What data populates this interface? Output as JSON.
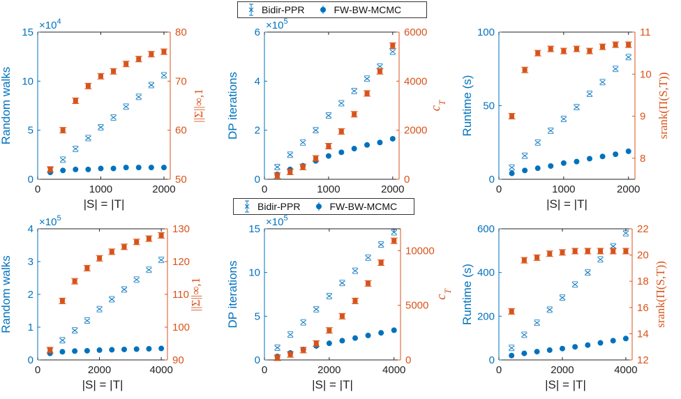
{
  "legend": {
    "bidir_label": "Bidir-PPR",
    "fw_label": "FW-BW-MCMC"
  },
  "colors": {
    "blue": "#0072BD",
    "orange": "#D95319",
    "axis": "#222222"
  },
  "chart_data": [
    {
      "type": "scatter",
      "xlabel": "|S| = |T|",
      "ylabel": "Random walks",
      "y2label": "||Σ||∞,1",
      "xlim": [
        0,
        2100
      ],
      "xticks": [
        0,
        1000,
        2000
      ],
      "ylim": [
        0,
        15
      ],
      "yticks": [
        0,
        5,
        10,
        15
      ],
      "yexp": "4",
      "y2lim": [
        50,
        80
      ],
      "y2ticks": [
        50,
        60,
        70,
        80
      ],
      "x": [
        200,
        400,
        600,
        800,
        1000,
        1200,
        1400,
        1600,
        1800,
        2000
      ],
      "series": [
        {
          "name": "Bidir-PPR",
          "axis": "left",
          "values": [
            1.0,
            2.0,
            3.1,
            4.2,
            5.3,
            6.3,
            7.4,
            8.4,
            9.6,
            10.6
          ]
        },
        {
          "name": "FW-BW-MCMC",
          "axis": "left",
          "values": [
            0.7,
            0.9,
            1.0,
            1.0,
            1.1,
            1.1,
            1.2,
            1.2,
            1.2,
            1.2
          ]
        },
        {
          "name": "||Σ||∞,1",
          "axis": "right",
          "values": [
            52,
            60,
            66,
            69,
            71,
            72,
            73.5,
            74.5,
            75.5,
            76
          ]
        }
      ]
    },
    {
      "type": "scatter",
      "xlabel": "|S| = |T|",
      "ylabel": "DP iterations",
      "y2label": "c_T",
      "xlim": [
        0,
        2100
      ],
      "xticks": [
        0,
        1000,
        2000
      ],
      "ylim": [
        0,
        6
      ],
      "yticks": [
        0,
        2,
        4,
        6
      ],
      "yexp": "5",
      "y2lim": [
        0,
        6000
      ],
      "y2ticks": [
        0,
        2000,
        4000,
        6000
      ],
      "x": [
        200,
        400,
        600,
        800,
        1000,
        1200,
        1400,
        1600,
        1800,
        2000
      ],
      "series": [
        {
          "name": "Bidir-PPR",
          "axis": "left",
          "values": [
            0.5,
            1.0,
            1.5,
            2.0,
            2.6,
            3.1,
            3.6,
            4.1,
            4.6,
            5.2
          ]
        },
        {
          "name": "FW-BW-MCMC",
          "axis": "left",
          "values": [
            0.2,
            0.4,
            0.55,
            0.75,
            0.95,
            1.1,
            1.25,
            1.4,
            1.5,
            1.65
          ]
        },
        {
          "name": "c_T",
          "axis": "right",
          "values": [
            150,
            300,
            500,
            850,
            1350,
            1950,
            2650,
            3500,
            4400,
            5450
          ]
        }
      ]
    },
    {
      "type": "scatter",
      "xlabel": "|S| = |T|",
      "ylabel": "Runtime (s)",
      "y2label": "srank(Π(S,T))",
      "xlim": [
        0,
        2100
      ],
      "xticks": [
        0,
        1000,
        2000
      ],
      "ylim": [
        0,
        100
      ],
      "yticks": [
        0,
        50,
        100
      ],
      "yexp": "",
      "y2lim": [
        7.5,
        11
      ],
      "y2ticks": [
        8,
        9,
        10,
        11
      ],
      "x": [
        200,
        400,
        600,
        800,
        1000,
        1200,
        1400,
        1600,
        1800,
        2000
      ],
      "series": [
        {
          "name": "Bidir-PPR",
          "axis": "left",
          "values": [
            8,
            16,
            25,
            33,
            41,
            49,
            58,
            66,
            75,
            83
          ]
        },
        {
          "name": "FW-BW-MCMC",
          "axis": "left",
          "values": [
            4,
            6,
            7.5,
            9,
            11,
            12,
            14,
            15.5,
            17,
            19
          ]
        },
        {
          "name": "srank(Π(S,T))",
          "axis": "right",
          "values": [
            9.0,
            10.1,
            10.5,
            10.6,
            10.55,
            10.6,
            10.55,
            10.65,
            10.7,
            10.7
          ]
        }
      ]
    },
    {
      "type": "scatter",
      "xlabel": "|S| = |T|",
      "ylabel": "Random walks",
      "y2label": "||Σ||∞,1",
      "xlim": [
        0,
        4200
      ],
      "xticks": [
        0,
        2000,
        4000
      ],
      "ylim": [
        0,
        4
      ],
      "yticks": [
        0,
        1,
        2,
        3,
        4
      ],
      "yexp": "5",
      "y2lim": [
        90,
        130
      ],
      "y2ticks": [
        90,
        100,
        110,
        120,
        130
      ],
      "x": [
        400,
        800,
        1200,
        1600,
        2000,
        2400,
        2800,
        3200,
        3600,
        4000
      ],
      "series": [
        {
          "name": "Bidir-PPR",
          "axis": "left",
          "values": [
            0.3,
            0.6,
            0.9,
            1.2,
            1.55,
            1.85,
            2.15,
            2.45,
            2.75,
            3.05
          ]
        },
        {
          "name": "FW-BW-MCMC",
          "axis": "left",
          "values": [
            0.2,
            0.25,
            0.27,
            0.28,
            0.3,
            0.31,
            0.32,
            0.33,
            0.34,
            0.35
          ]
        },
        {
          "name": "||Σ||∞,1",
          "axis": "right",
          "values": [
            93,
            108,
            114,
            118,
            121,
            123,
            124.5,
            126,
            127,
            128
          ]
        }
      ]
    },
    {
      "type": "scatter",
      "xlabel": "|S| = |T|",
      "ylabel": "DP iterations",
      "y2label": "c_T",
      "xlim": [
        0,
        4200
      ],
      "xticks": [
        0,
        2000,
        4000
      ],
      "ylim": [
        0,
        15
      ],
      "yticks": [
        0,
        5,
        10,
        15
      ],
      "yexp": "5",
      "y2lim": [
        0,
        12000
      ],
      "y2ticks": [
        0,
        5000,
        10000
      ],
      "x": [
        400,
        800,
        1200,
        1600,
        2000,
        2400,
        2800,
        3200,
        3600,
        4000
      ],
      "series": [
        {
          "name": "Bidir-PPR",
          "axis": "left",
          "values": [
            1.4,
            2.9,
            4.3,
            5.8,
            7.3,
            8.8,
            10.2,
            11.7,
            13.2,
            14.6
          ]
        },
        {
          "name": "FW-BW-MCMC",
          "axis": "left",
          "values": [
            0.4,
            0.8,
            1.2,
            1.6,
            1.9,
            2.2,
            2.5,
            2.8,
            3.1,
            3.4
          ]
        },
        {
          "name": "c_T",
          "axis": "right",
          "values": [
            200,
            500,
            900,
            1500,
            2700,
            4000,
            5400,
            7000,
            8900,
            10900
          ]
        }
      ]
    },
    {
      "type": "scatter",
      "xlabel": "|S| = |T|",
      "ylabel": "Runtime (s)",
      "y2label": "srank(Π(S,T))",
      "xlim": [
        0,
        4200
      ],
      "xticks": [
        0,
        2000,
        4000
      ],
      "ylim": [
        0,
        600
      ],
      "yticks": [
        0,
        200,
        400,
        600
      ],
      "yexp": "",
      "y2lim": [
        12,
        22
      ],
      "y2ticks": [
        12,
        14,
        16,
        18,
        20,
        22
      ],
      "x": [
        400,
        800,
        1200,
        1600,
        2000,
        2400,
        2800,
        3200,
        3600,
        4000
      ],
      "series": [
        {
          "name": "Bidir-PPR",
          "axis": "left",
          "values": [
            55,
            115,
            170,
            230,
            285,
            345,
            400,
            460,
            520,
            580
          ]
        },
        {
          "name": "FW-BW-MCMC",
          "axis": "left",
          "values": [
            20,
            30,
            38,
            45,
            52,
            60,
            68,
            78,
            88,
            98
          ]
        },
        {
          "name": "srank(Π(S,T))",
          "axis": "right",
          "values": [
            15.7,
            19.6,
            19.8,
            20.1,
            20.2,
            20.3,
            20.3,
            20.3,
            20.3,
            20.3
          ]
        }
      ]
    }
  ]
}
